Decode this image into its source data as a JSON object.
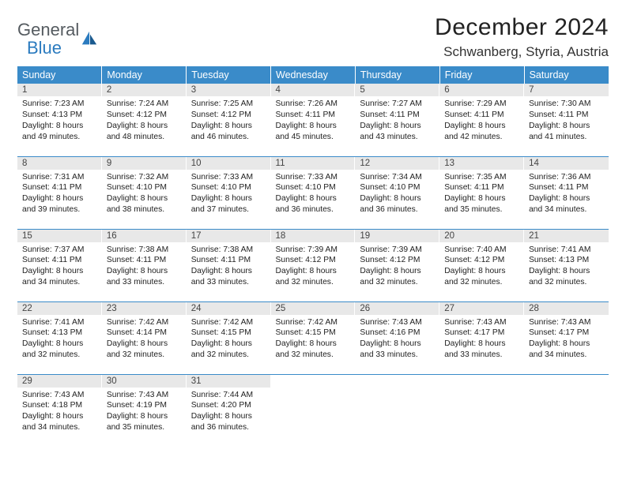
{
  "logo": {
    "text_top": "General",
    "text_bottom": "Blue"
  },
  "title": "December 2024",
  "location": "Schwanberg, Styria, Austria",
  "colors": {
    "header_bg": "#3a8bc9",
    "header_text": "#ffffff",
    "daynum_bg": "#e8e8e8",
    "row_border": "#3a8bc9",
    "logo_gray": "#555b60",
    "logo_blue": "#2b7bbf"
  },
  "day_headers": [
    "Sunday",
    "Monday",
    "Tuesday",
    "Wednesday",
    "Thursday",
    "Friday",
    "Saturday"
  ],
  "weeks": [
    [
      {
        "n": "1",
        "sr": "7:23 AM",
        "ss": "4:13 PM",
        "dl": "8 hours and 49 minutes."
      },
      {
        "n": "2",
        "sr": "7:24 AM",
        "ss": "4:12 PM",
        "dl": "8 hours and 48 minutes."
      },
      {
        "n": "3",
        "sr": "7:25 AM",
        "ss": "4:12 PM",
        "dl": "8 hours and 46 minutes."
      },
      {
        "n": "4",
        "sr": "7:26 AM",
        "ss": "4:11 PM",
        "dl": "8 hours and 45 minutes."
      },
      {
        "n": "5",
        "sr": "7:27 AM",
        "ss": "4:11 PM",
        "dl": "8 hours and 43 minutes."
      },
      {
        "n": "6",
        "sr": "7:29 AM",
        "ss": "4:11 PM",
        "dl": "8 hours and 42 minutes."
      },
      {
        "n": "7",
        "sr": "7:30 AM",
        "ss": "4:11 PM",
        "dl": "8 hours and 41 minutes."
      }
    ],
    [
      {
        "n": "8",
        "sr": "7:31 AM",
        "ss": "4:11 PM",
        "dl": "8 hours and 39 minutes."
      },
      {
        "n": "9",
        "sr": "7:32 AM",
        "ss": "4:10 PM",
        "dl": "8 hours and 38 minutes."
      },
      {
        "n": "10",
        "sr": "7:33 AM",
        "ss": "4:10 PM",
        "dl": "8 hours and 37 minutes."
      },
      {
        "n": "11",
        "sr": "7:33 AM",
        "ss": "4:10 PM",
        "dl": "8 hours and 36 minutes."
      },
      {
        "n": "12",
        "sr": "7:34 AM",
        "ss": "4:10 PM",
        "dl": "8 hours and 36 minutes."
      },
      {
        "n": "13",
        "sr": "7:35 AM",
        "ss": "4:11 PM",
        "dl": "8 hours and 35 minutes."
      },
      {
        "n": "14",
        "sr": "7:36 AM",
        "ss": "4:11 PM",
        "dl": "8 hours and 34 minutes."
      }
    ],
    [
      {
        "n": "15",
        "sr": "7:37 AM",
        "ss": "4:11 PM",
        "dl": "8 hours and 34 minutes."
      },
      {
        "n": "16",
        "sr": "7:38 AM",
        "ss": "4:11 PM",
        "dl": "8 hours and 33 minutes."
      },
      {
        "n": "17",
        "sr": "7:38 AM",
        "ss": "4:11 PM",
        "dl": "8 hours and 33 minutes."
      },
      {
        "n": "18",
        "sr": "7:39 AM",
        "ss": "4:12 PM",
        "dl": "8 hours and 32 minutes."
      },
      {
        "n": "19",
        "sr": "7:39 AM",
        "ss": "4:12 PM",
        "dl": "8 hours and 32 minutes."
      },
      {
        "n": "20",
        "sr": "7:40 AM",
        "ss": "4:12 PM",
        "dl": "8 hours and 32 minutes."
      },
      {
        "n": "21",
        "sr": "7:41 AM",
        "ss": "4:13 PM",
        "dl": "8 hours and 32 minutes."
      }
    ],
    [
      {
        "n": "22",
        "sr": "7:41 AM",
        "ss": "4:13 PM",
        "dl": "8 hours and 32 minutes."
      },
      {
        "n": "23",
        "sr": "7:42 AM",
        "ss": "4:14 PM",
        "dl": "8 hours and 32 minutes."
      },
      {
        "n": "24",
        "sr": "7:42 AM",
        "ss": "4:15 PM",
        "dl": "8 hours and 32 minutes."
      },
      {
        "n": "25",
        "sr": "7:42 AM",
        "ss": "4:15 PM",
        "dl": "8 hours and 32 minutes."
      },
      {
        "n": "26",
        "sr": "7:43 AM",
        "ss": "4:16 PM",
        "dl": "8 hours and 33 minutes."
      },
      {
        "n": "27",
        "sr": "7:43 AM",
        "ss": "4:17 PM",
        "dl": "8 hours and 33 minutes."
      },
      {
        "n": "28",
        "sr": "7:43 AM",
        "ss": "4:17 PM",
        "dl": "8 hours and 34 minutes."
      }
    ],
    [
      {
        "n": "29",
        "sr": "7:43 AM",
        "ss": "4:18 PM",
        "dl": "8 hours and 34 minutes."
      },
      {
        "n": "30",
        "sr": "7:43 AM",
        "ss": "4:19 PM",
        "dl": "8 hours and 35 minutes."
      },
      {
        "n": "31",
        "sr": "7:44 AM",
        "ss": "4:20 PM",
        "dl": "8 hours and 36 minutes."
      },
      null,
      null,
      null,
      null
    ]
  ],
  "labels": {
    "sunrise": "Sunrise: ",
    "sunset": "Sunset: ",
    "daylight": "Daylight: "
  }
}
